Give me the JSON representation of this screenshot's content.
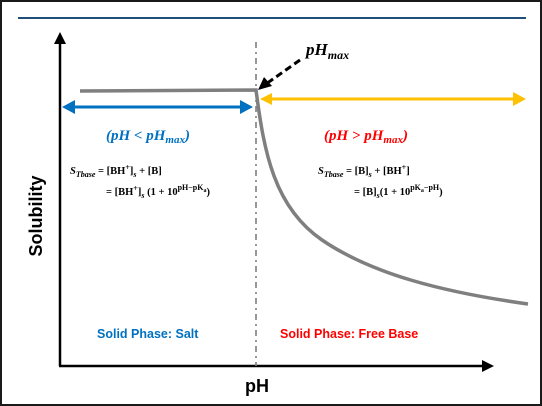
{
  "axes": {
    "x_label": "pH",
    "y_label": "Solubility"
  },
  "annotations": {
    "ph_max": {
      "main": "pH",
      "sub": "max"
    },
    "left_condition": {
      "open": "(pH < pH",
      "sub": "max",
      "close": ")"
    },
    "right_condition": {
      "open": "(pH > pH",
      "sub": "max",
      "close": ")"
    }
  },
  "equations": {
    "left_line1": {
      "S": "S",
      "sub": "Tbase",
      "rhs_a": " = [BH",
      "sup": "+",
      "rhs_b": "]",
      "sub2": "s",
      "rhs_c": " + [B]"
    },
    "left_line2": {
      "a": "= [BH",
      "sup": "+",
      "b": "]",
      "sub": "s",
      "c": " (1 + 10",
      "exp": "pH−pK",
      "exp_sub": "a",
      "d": ")"
    },
    "right_line1": {
      "S": "S",
      "sub": "Tbase",
      "a": " = [B]",
      "sub2": "s",
      "b": " + [BH",
      "sup": "+",
      "c": "]"
    },
    "right_line2": {
      "a": "= [B]",
      "sub": "s",
      "b": "(1 + 10",
      "exp": "pK",
      "exp_sub": "a",
      "exp2": "−pH",
      "c": ")"
    }
  },
  "phases": {
    "left": "Solid Phase: Salt",
    "right": "Solid Phase: Free Base"
  },
  "colors": {
    "curve": "#7f7f7f",
    "blue": "#0070c0",
    "red": "#ff0000",
    "amber": "#ffc000",
    "header_rule": "#1f4e79",
    "text": "#000000"
  }
}
